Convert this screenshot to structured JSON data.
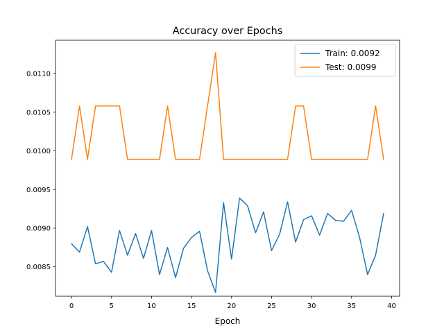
{
  "chart_data": {
    "type": "line",
    "title": "Accuracy over Epochs",
    "xlabel": "Epoch",
    "ylabel": "",
    "xlim": [
      -2,
      41
    ],
    "ylim": [
      0.00812,
      0.01143
    ],
    "xticks": [
      0,
      5,
      10,
      15,
      20,
      25,
      30,
      35,
      40
    ],
    "yticks": [
      0.0085,
      0.009,
      0.0095,
      0.01,
      0.0105,
      0.011
    ],
    "ytick_labels": [
      "0.0085",
      "0.0090",
      "0.0095",
      "0.0100",
      "0.0105",
      "0.0110"
    ],
    "grid": false,
    "legend_position": "top-right",
    "x": [
      0,
      1,
      2,
      3,
      4,
      5,
      6,
      7,
      8,
      9,
      10,
      11,
      12,
      13,
      14,
      15,
      16,
      17,
      18,
      19,
      20,
      21,
      22,
      23,
      24,
      25,
      26,
      27,
      28,
      29,
      30,
      31,
      32,
      33,
      34,
      35,
      36,
      37,
      38,
      39
    ],
    "series": [
      {
        "name": "Train: 0.0092",
        "color": "#1f77b4",
        "values": [
          0.0088,
          0.00869,
          0.00902,
          0.00854,
          0.00857,
          0.00843,
          0.00897,
          0.00865,
          0.00893,
          0.00861,
          0.00897,
          0.0084,
          0.00875,
          0.00836,
          0.00874,
          0.00888,
          0.00896,
          0.00845,
          0.00817,
          0.00933,
          0.0086,
          0.00939,
          0.00929,
          0.00894,
          0.00921,
          0.00871,
          0.00892,
          0.00934,
          0.00882,
          0.00911,
          0.00916,
          0.00891,
          0.00919,
          0.0091,
          0.00909,
          0.00923,
          0.00888,
          0.0084,
          0.00865,
          0.00919
        ]
      },
      {
        "name": "Test: 0.0099",
        "color": "#ff7f0e",
        "values": [
          0.00989,
          0.01058,
          0.00989,
          0.01058,
          0.01058,
          0.01058,
          0.01058,
          0.00989,
          0.00989,
          0.00989,
          0.00989,
          0.00989,
          0.01058,
          0.00989,
          0.00989,
          0.00989,
          0.00989,
          0.01058,
          0.01127,
          0.00989,
          0.00989,
          0.00989,
          0.00989,
          0.00989,
          0.00989,
          0.00989,
          0.00989,
          0.00989,
          0.01058,
          0.01058,
          0.00989,
          0.00989,
          0.00989,
          0.00989,
          0.00989,
          0.00989,
          0.00989,
          0.00989,
          0.01058,
          0.00989
        ]
      }
    ]
  }
}
